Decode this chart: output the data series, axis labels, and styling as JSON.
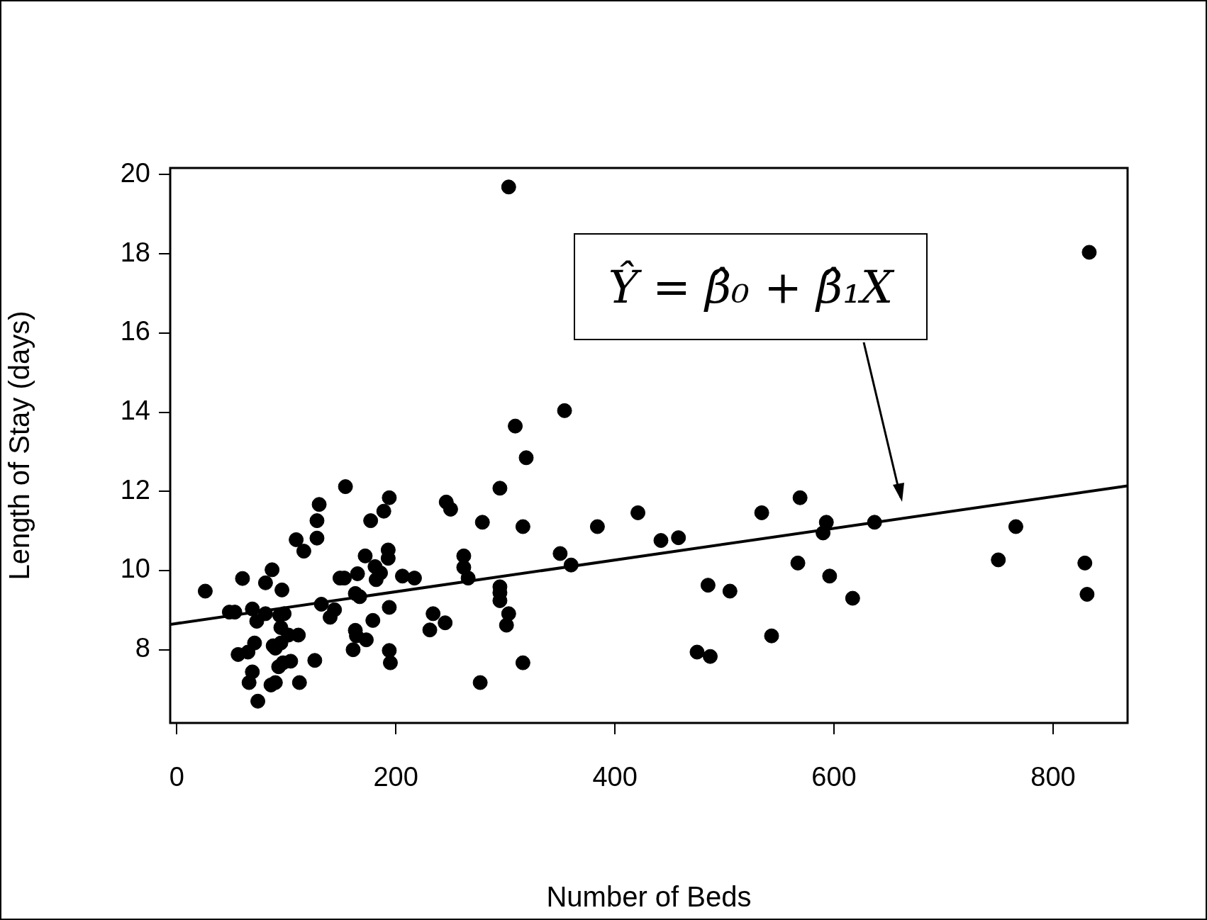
{
  "chart_data": {
    "type": "scatter",
    "xlabel": "Number of Beds",
    "ylabel": "Length of Stay (days)",
    "xlim": [
      -6,
      868
    ],
    "ylim": [
      6.15,
      20.17
    ],
    "xticks": [
      0,
      200,
      400,
      600,
      800
    ],
    "yticks": [
      8,
      10,
      12,
      14,
      16,
      18,
      20
    ],
    "grid": false,
    "legend": false,
    "annotations": [
      "Ŷ = β̂₀ + β̂₁X"
    ],
    "series": [
      {
        "color": "#000000",
        "marker": "circle",
        "x": [
          26,
          48,
          53,
          60,
          56,
          65,
          69,
          66,
          69,
          71,
          74,
          73,
          81,
          81,
          87,
          86,
          90,
          88,
          90,
          94,
          96,
          95,
          98,
          93,
          97,
          95,
          102,
          104,
          111,
          112,
          109,
          116,
          126,
          128,
          128,
          130,
          132,
          140,
          144,
          149,
          153,
          154,
          161,
          163,
          164,
          165,
          163,
          167,
          172,
          173,
          177,
          179,
          181,
          182,
          186,
          189,
          193,
          193,
          194,
          194,
          195,
          194,
          206,
          217,
          231,
          234,
          245,
          246,
          250,
          262,
          262,
          266,
          277,
          279,
          295,
          295,
          295,
          295,
          301,
          303,
          303,
          309,
          316,
          316,
          319,
          350,
          354,
          360,
          384,
          421,
          442,
          458,
          475,
          485,
          487,
          505,
          534,
          543,
          567,
          569,
          590,
          593,
          596,
          617,
          637,
          750,
          766,
          829,
          831,
          833
        ],
        "values": [
          9.48,
          8.95,
          8.95,
          9.8,
          7.88,
          7.94,
          9.03,
          7.17,
          7.44,
          8.17,
          6.7,
          8.72,
          9.69,
          8.91,
          10.02,
          7.11,
          7.17,
          8.1,
          8.04,
          8.87,
          9.51,
          8.56,
          8.91,
          7.57,
          7.67,
          8.17,
          8.37,
          7.71,
          8.37,
          7.17,
          10.78,
          10.49,
          7.73,
          10.82,
          11.26,
          11.67,
          9.15,
          8.82,
          9.01,
          9.81,
          9.81,
          12.12,
          8.0,
          8.49,
          8.35,
          9.92,
          9.42,
          9.34,
          10.37,
          8.25,
          11.26,
          8.74,
          10.1,
          9.77,
          9.94,
          11.5,
          10.52,
          10.31,
          9.07,
          7.98,
          7.67,
          11.84,
          9.86,
          9.81,
          8.5,
          8.91,
          8.68,
          11.73,
          11.55,
          10.37,
          10.08,
          9.81,
          7.17,
          11.22,
          12.08,
          9.59,
          9.44,
          9.24,
          8.62,
          8.91,
          19.69,
          13.65,
          11.11,
          7.67,
          12.85,
          10.43,
          14.04,
          10.14,
          11.11,
          11.46,
          10.76,
          10.83,
          7.94,
          9.63,
          7.83,
          9.48,
          11.46,
          8.35,
          10.19,
          11.84,
          10.95,
          11.22,
          9.86,
          9.3,
          11.22,
          10.27,
          11.11,
          10.19,
          9.4,
          18.04
        ]
      },
      {
        "type": "line",
        "color": "#000000",
        "x": [
          -6,
          868
        ],
        "values": [
          8.64,
          12.14
        ]
      }
    ]
  }
}
